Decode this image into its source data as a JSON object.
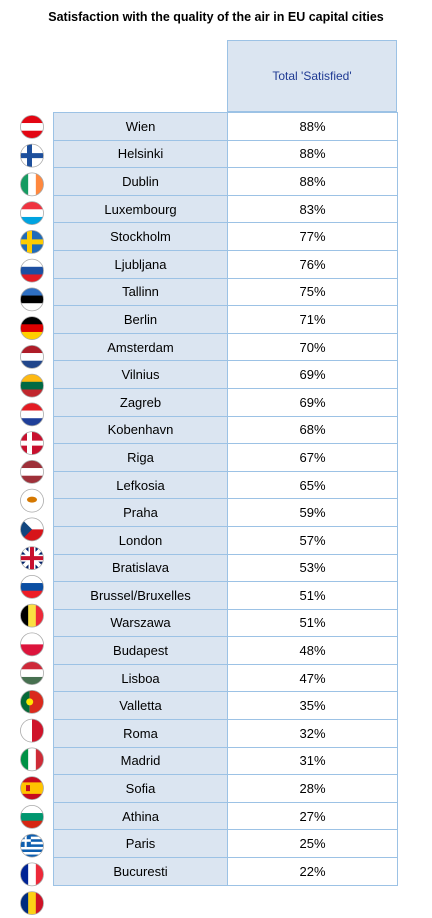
{
  "chart_data": {
    "type": "table",
    "title": "Satisfaction with the quality of the air in EU capital cities",
    "column_header": "Total 'Satisfied'",
    "rows": [
      {
        "city": "Wien",
        "value": "88%",
        "flag": [
          "#e30613",
          "#ffffff",
          "#e30613"
        ],
        "flag_dir": "h"
      },
      {
        "city": "Helsinki",
        "value": "88%",
        "flag": [
          "#ffffff",
          "#1d4f9c"
        ],
        "flag_dir": "cross"
      },
      {
        "city": "Dublin",
        "value": "88%",
        "flag": [
          "#169b62",
          "#ffffff",
          "#ff883e"
        ],
        "flag_dir": "v"
      },
      {
        "city": "Luxembourg",
        "value": "83%",
        "flag": [
          "#ef3340",
          "#ffffff",
          "#00a3e0"
        ],
        "flag_dir": "h"
      },
      {
        "city": "Stockholm",
        "value": "77%",
        "flag": [
          "#1f6bb8",
          "#fecc02"
        ],
        "flag_dir": "cross"
      },
      {
        "city": "Ljubljana",
        "value": "76%",
        "flag": [
          "#ffffff",
          "#1c4fa1",
          "#e31b23"
        ],
        "flag_dir": "h"
      },
      {
        "city": "Tallinn",
        "value": "75%",
        "flag": [
          "#2e6fc2",
          "#000000",
          "#ffffff"
        ],
        "flag_dir": "h"
      },
      {
        "city": "Berlin",
        "value": "71%",
        "flag": [
          "#000000",
          "#dd0000",
          "#ffce00"
        ],
        "flag_dir": "h"
      },
      {
        "city": "Amsterdam",
        "value": "70%",
        "flag": [
          "#ae1c28",
          "#ffffff",
          "#21468b"
        ],
        "flag_dir": "h"
      },
      {
        "city": "Vilnius",
        "value": "69%",
        "flag": [
          "#fdb913",
          "#006a44",
          "#c1272d"
        ],
        "flag_dir": "h"
      },
      {
        "city": "Zagreb",
        "value": "69%",
        "flag": [
          "#e31b23",
          "#ffffff",
          "#1f3f99"
        ],
        "flag_dir": "h"
      },
      {
        "city": "Kobenhavn",
        "value": "68%",
        "flag": [
          "#c8102e",
          "#ffffff"
        ],
        "flag_dir": "cross"
      },
      {
        "city": "Riga",
        "value": "67%",
        "flag": [
          "#9e3039",
          "#ffffff",
          "#9e3039"
        ],
        "flag_dir": "h"
      },
      {
        "city": "Lefkosia",
        "value": "65%",
        "flag": [
          "#ffffff",
          "#d57800"
        ],
        "flag_dir": "dot"
      },
      {
        "city": "Praha",
        "value": "59%",
        "flag": [
          "#ffffff",
          "#d7141a",
          "#11457e"
        ],
        "flag_dir": "tri"
      },
      {
        "city": "London",
        "value": "57%",
        "flag": [
          "#012169",
          "#ffffff",
          "#c8102e"
        ],
        "flag_dir": "uk"
      },
      {
        "city": "Bratislava",
        "value": "53%",
        "flag": [
          "#ffffff",
          "#0b4ea2",
          "#ee1c25"
        ],
        "flag_dir": "h"
      },
      {
        "city": "Brussel/Bruxelles",
        "value": "51%",
        "flag": [
          "#000000",
          "#fae042",
          "#ed2939"
        ],
        "flag_dir": "v"
      },
      {
        "city": "Warszawa",
        "value": "51%",
        "flag": [
          "#ffffff",
          "#dc143c"
        ],
        "flag_dir": "h"
      },
      {
        "city": "Budapest",
        "value": "48%",
        "flag": [
          "#ce2939",
          "#ffffff",
          "#477050"
        ],
        "flag_dir": "h"
      },
      {
        "city": "Lisboa",
        "value": "47%",
        "flag": [
          "#046a38",
          "#da291c"
        ],
        "flag_dir": "pt"
      },
      {
        "city": "Valletta",
        "value": "35%",
        "flag": [
          "#ffffff",
          "#cf142b"
        ],
        "flag_dir": "v"
      },
      {
        "city": "Roma",
        "value": "32%",
        "flag": [
          "#009246",
          "#ffffff",
          "#ce2b37"
        ],
        "flag_dir": "v"
      },
      {
        "city": "Madrid",
        "value": "31%",
        "flag": [
          "#c60b1e",
          "#ffc400",
          "#c60b1e"
        ],
        "flag_dir": "es"
      },
      {
        "city": "Sofia",
        "value": "28%",
        "flag": [
          "#ffffff",
          "#00966e",
          "#d62612"
        ],
        "flag_dir": "h"
      },
      {
        "city": "Athina",
        "value": "27%",
        "flag": [
          "#0d5eaf",
          "#ffffff"
        ],
        "flag_dir": "gr"
      },
      {
        "city": "Paris",
        "value": "25%",
        "flag": [
          "#002395",
          "#ffffff",
          "#ed2939"
        ],
        "flag_dir": "v"
      },
      {
        "city": "Bucuresti",
        "value": "22%",
        "flag": [
          "#002b7f",
          "#fcd116",
          "#ce1126"
        ],
        "flag_dir": "v"
      }
    ]
  }
}
